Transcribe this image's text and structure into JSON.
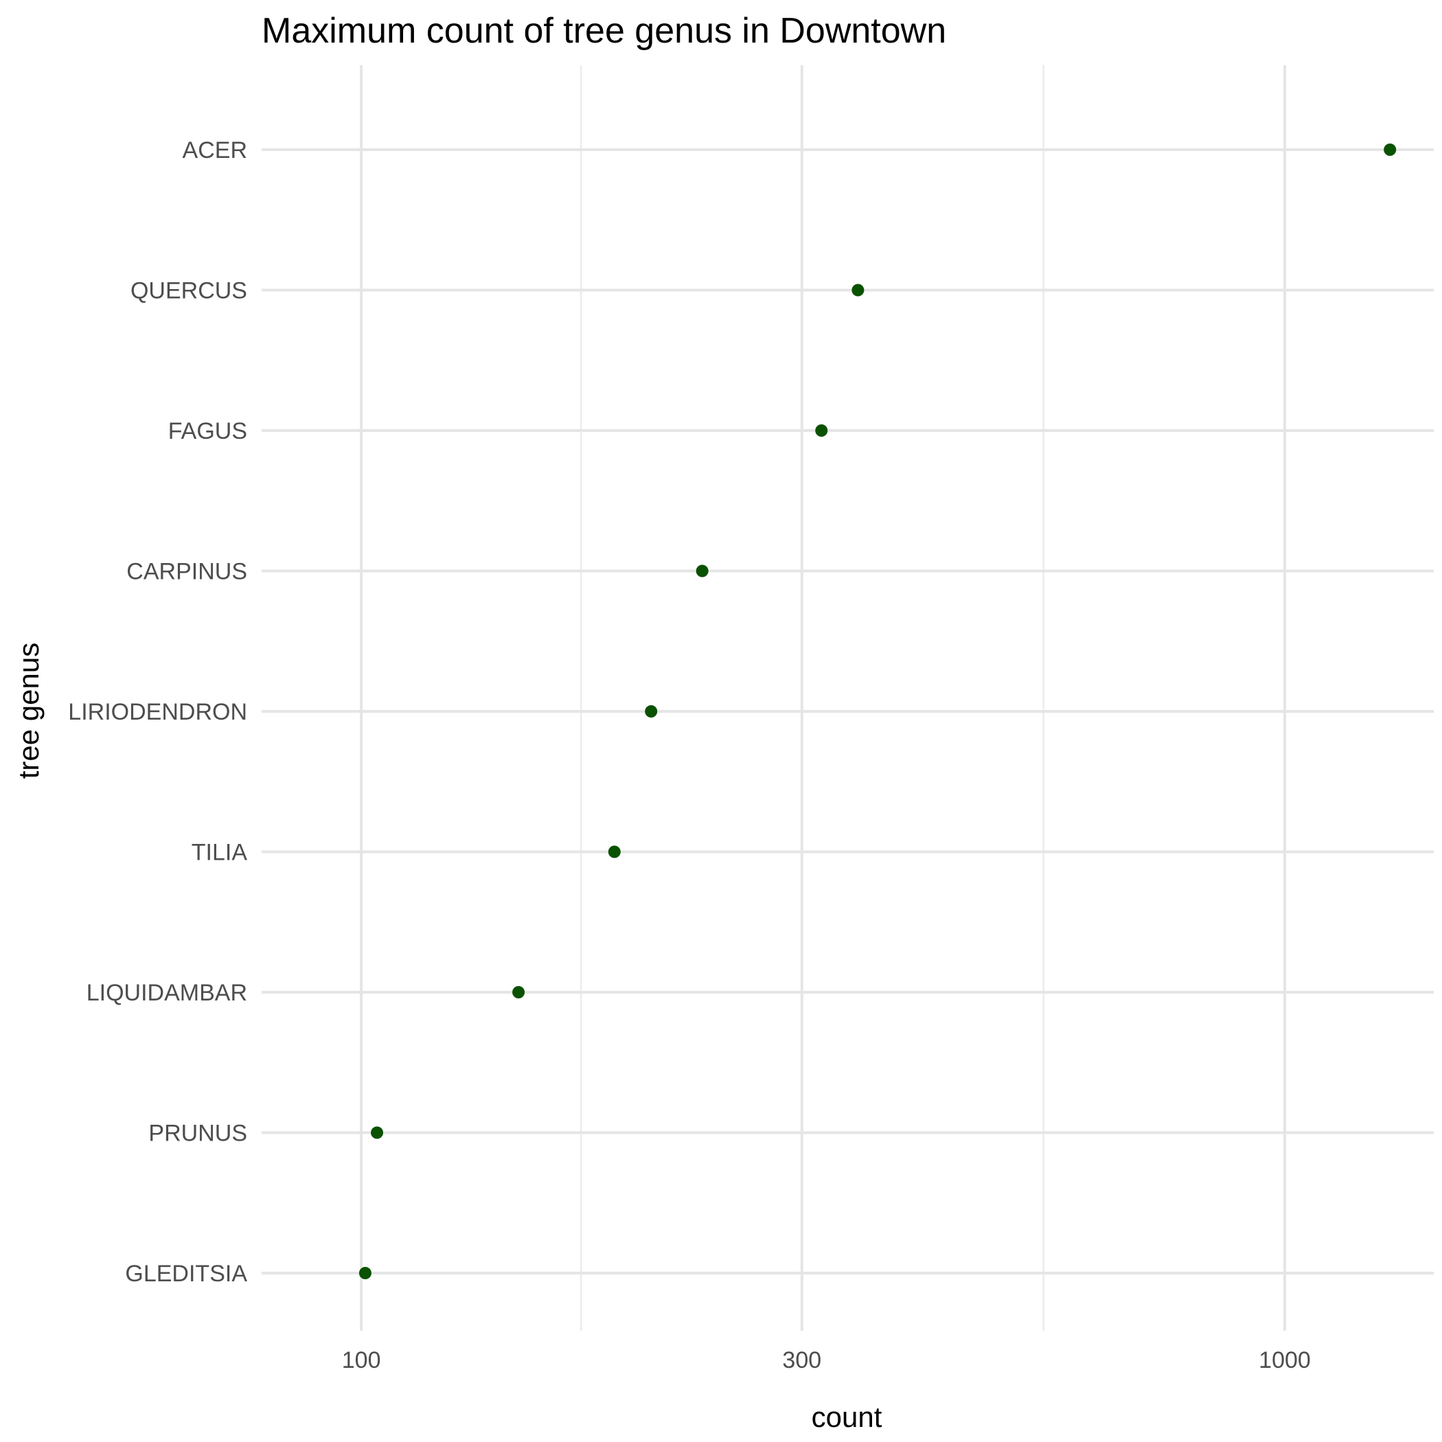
{
  "chart_data": {
    "type": "scatter",
    "title": "Maximum count of tree genus in Downtown",
    "xlabel": "count",
    "ylabel": "tree genus",
    "x_scale": "log10",
    "xlim": [
      78,
      1450
    ],
    "x_ticks": [
      100,
      300,
      1000
    ],
    "x_tick_labels": [
      "100",
      "300",
      "1000"
    ],
    "x_minor_ticks": [
      173,
      548
    ],
    "grid": true,
    "categories": [
      "ACER",
      "QUERCUS",
      "FAGUS",
      "CARPINUS",
      "LIRIODENDRON",
      "TILIA",
      "LIQUIDAMBAR",
      "PRUNUS",
      "GLEDITSIA"
    ],
    "values": [
      1300,
      345,
      315,
      234,
      206,
      188,
      148,
      104,
      101
    ],
    "point_color": "#0a5200"
  }
}
